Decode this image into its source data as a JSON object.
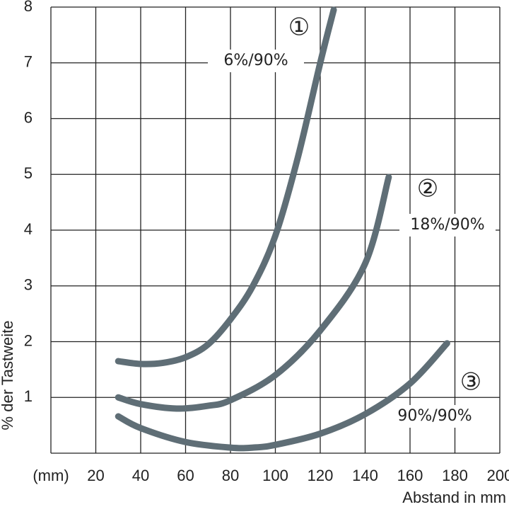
{
  "chart_data": {
    "type": "line",
    "ylabel": "% der Tastweite",
    "xlabel": "Abstand in mm",
    "xunit": "(mm)",
    "xlim": [
      0,
      200
    ],
    "ylim": [
      0,
      8
    ],
    "xticks": [
      20,
      40,
      60,
      80,
      100,
      120,
      140,
      160,
      180,
      200
    ],
    "yticks": [
      1,
      2,
      3,
      4,
      5,
      6,
      7,
      8
    ],
    "grid": true,
    "series": [
      {
        "color": "#5f6e76",
        "x": [
          30,
          40,
          50,
          60,
          70,
          80,
          90,
          100,
          110,
          120,
          126
        ],
        "values": [
          1.65,
          1.6,
          1.62,
          1.72,
          1.95,
          2.4,
          3.0,
          3.9,
          5.3,
          7.0,
          7.95
        ]
      },
      {
        "color": "#5f6e76",
        "x": [
          30,
          40,
          56,
          70,
          80,
          100,
          120,
          140,
          150.5
        ],
        "values": [
          1.0,
          0.88,
          0.8,
          0.85,
          0.95,
          1.4,
          2.2,
          3.4,
          4.95
        ]
      },
      {
        "color": "#5f6e76",
        "x": [
          30,
          40,
          60,
          80,
          90,
          100,
          120,
          140,
          160,
          176.5
        ],
        "values": [
          0.66,
          0.45,
          0.2,
          0.1,
          0.1,
          0.15,
          0.35,
          0.7,
          1.25,
          1.97
        ]
      }
    ],
    "annotations": [
      "①",
      "6%/90%",
      "②",
      "18%/90%",
      "③",
      "90%/90%"
    ]
  }
}
